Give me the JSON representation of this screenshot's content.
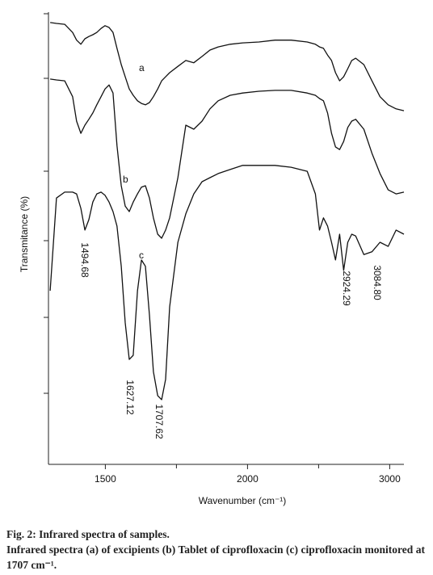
{
  "chart_data": {
    "type": "line",
    "xlabel": "Wavenumber (cm⁻¹)",
    "ylabel": "Transmitance (%)",
    "caption_title": "Fig. 2: Infrared spectra of samples.",
    "caption": "Infrared spectra (a) of excipients (b) Tablet of ciprofloxacin (c) ciprofloxacin monitored at 1707 cm⁻¹.",
    "xlim": [
      1300,
      3100
    ],
    "x_break": 2000,
    "x_break_ratio": 2,
    "xticks": [
      1500,
      2000,
      3000
    ],
    "xticks_minor": [
      1750,
      2500
    ],
    "ylim": [
      0,
      100
    ],
    "x": [
      1306,
      1328,
      1357,
      1385,
      1399,
      1414,
      1428,
      1442,
      1456,
      1470,
      1485,
      1499,
      1513,
      1527,
      1541,
      1556,
      1570,
      1584,
      1598,
      1613,
      1627,
      1641,
      1655,
      1669,
      1684,
      1698,
      1712,
      1726,
      1755,
      1783,
      1811,
      1840,
      1868,
      1897,
      1939,
      1983,
      2080,
      2193,
      2307,
      2420,
      2477,
      2506,
      2534,
      2563,
      2591,
      2619,
      2648,
      2676,
      2705,
      2733,
      2761,
      2818,
      2875,
      2932,
      2989,
      3045,
      3100
    ],
    "series": [
      {
        "name": "a",
        "color": "#111111",
        "values": [
          97.7,
          97.5,
          97.3,
          95.5,
          93.8,
          92.9,
          94.1,
          94.6,
          95.0,
          95.5,
          96.4,
          97.0,
          96.6,
          95.5,
          92.0,
          88.4,
          85.7,
          83.0,
          81.6,
          80.4,
          79.8,
          79.5,
          80.0,
          81.3,
          83.0,
          84.8,
          85.7,
          86.6,
          88.0,
          89.3,
          88.8,
          90.2,
          91.6,
          92.3,
          92.9,
          93.2,
          93.4,
          93.8,
          93.8,
          93.4,
          92.9,
          92.3,
          92.0,
          90.5,
          89.3,
          86.6,
          84.8,
          85.7,
          87.5,
          89.3,
          89.8,
          88.4,
          84.8,
          81.3,
          79.5,
          78.6,
          78.2
        ]
      },
      {
        "name": "b",
        "color": "#111111",
        "values": [
          85.2,
          85.0,
          84.8,
          81.3,
          75.9,
          73.2,
          75.0,
          76.3,
          77.7,
          79.5,
          81.3,
          83.0,
          83.9,
          82.1,
          70.5,
          61.6,
          57.1,
          55.9,
          58.0,
          59.8,
          61.3,
          61.6,
          58.9,
          54.5,
          50.9,
          50.0,
          51.8,
          54.5,
          63.4,
          75.0,
          74.1,
          75.9,
          78.6,
          80.4,
          81.6,
          82.1,
          82.5,
          82.7,
          82.7,
          82.1,
          81.6,
          80.9,
          80.4,
          77.7,
          73.2,
          70.2,
          69.6,
          71.4,
          74.5,
          75.9,
          76.3,
          74.1,
          68.8,
          64.3,
          60.7,
          59.8,
          60.2
        ]
      },
      {
        "name": "c",
        "color": "#111111",
        "values": [
          38.4,
          58.9,
          60.2,
          60.2,
          59.8,
          56.6,
          51.8,
          54.1,
          58.0,
          59.8,
          60.2,
          59.5,
          58.0,
          55.9,
          52.7,
          43.8,
          31.3,
          23.2,
          24.1,
          38.4,
          45.2,
          43.8,
          33.0,
          20.5,
          15.2,
          14.3,
          18.8,
          34.8,
          49.1,
          55.4,
          59.8,
          62.5,
          63.4,
          64.3,
          65.2,
          66.1,
          66.1,
          66.1,
          65.7,
          64.8,
          59.8,
          51.8,
          54.5,
          52.7,
          49.1,
          45.2,
          50.9,
          42.9,
          49.1,
          50.9,
          50.5,
          46.4,
          47.0,
          49.1,
          48.2,
          51.8,
          50.9
        ]
      }
    ],
    "annotations": [
      "1494.68",
      "1627.12",
      "1707.62",
      "2924.29",
      "3084.80"
    ]
  }
}
